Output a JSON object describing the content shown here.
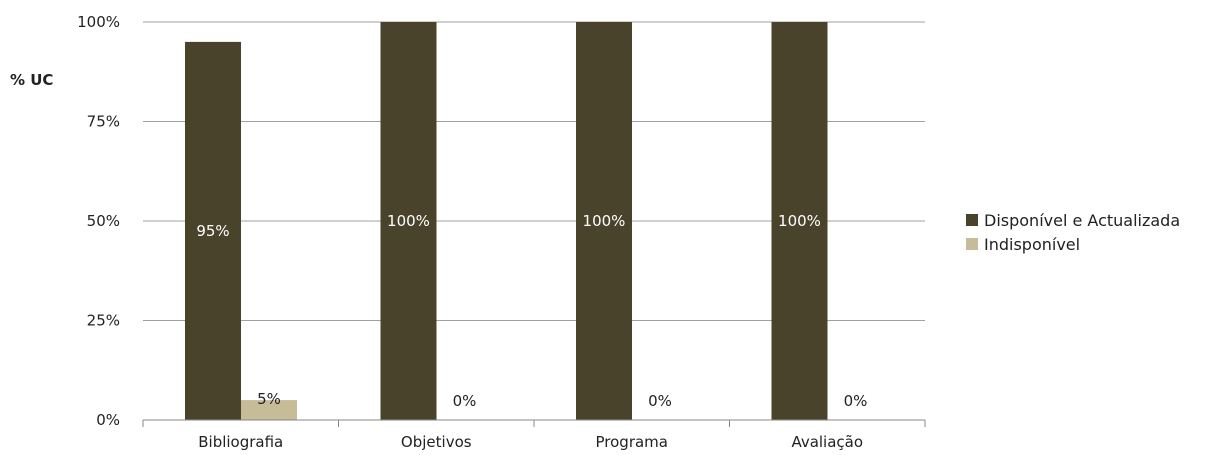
{
  "chart_data": {
    "type": "bar",
    "title": "",
    "ylabel": "% UC",
    "xlabel": "",
    "ylim": [
      0,
      100
    ],
    "yticks": [
      "0%",
      "25%",
      "50%",
      "75%",
      "100%"
    ],
    "ytick_values": [
      0,
      25,
      50,
      75,
      100
    ],
    "categories": [
      "Bibliografia",
      "Objetivos",
      "Programa",
      "Avaliação"
    ],
    "series": [
      {
        "name": "Disponível e Actualizada",
        "values": [
          95,
          100,
          100,
          100
        ],
        "labels": [
          "95%",
          "100%",
          "100%",
          "100%"
        ],
        "color": "#4a432b",
        "label_color": "#ffffff"
      },
      {
        "name": "Indisponível",
        "values": [
          5,
          0,
          0,
          0
        ],
        "labels": [
          "5%",
          "0%",
          "0%",
          "0%"
        ],
        "color": "#c6bc98",
        "label_color": "#222222"
      }
    ],
    "grid": true,
    "legend_position": "right"
  }
}
